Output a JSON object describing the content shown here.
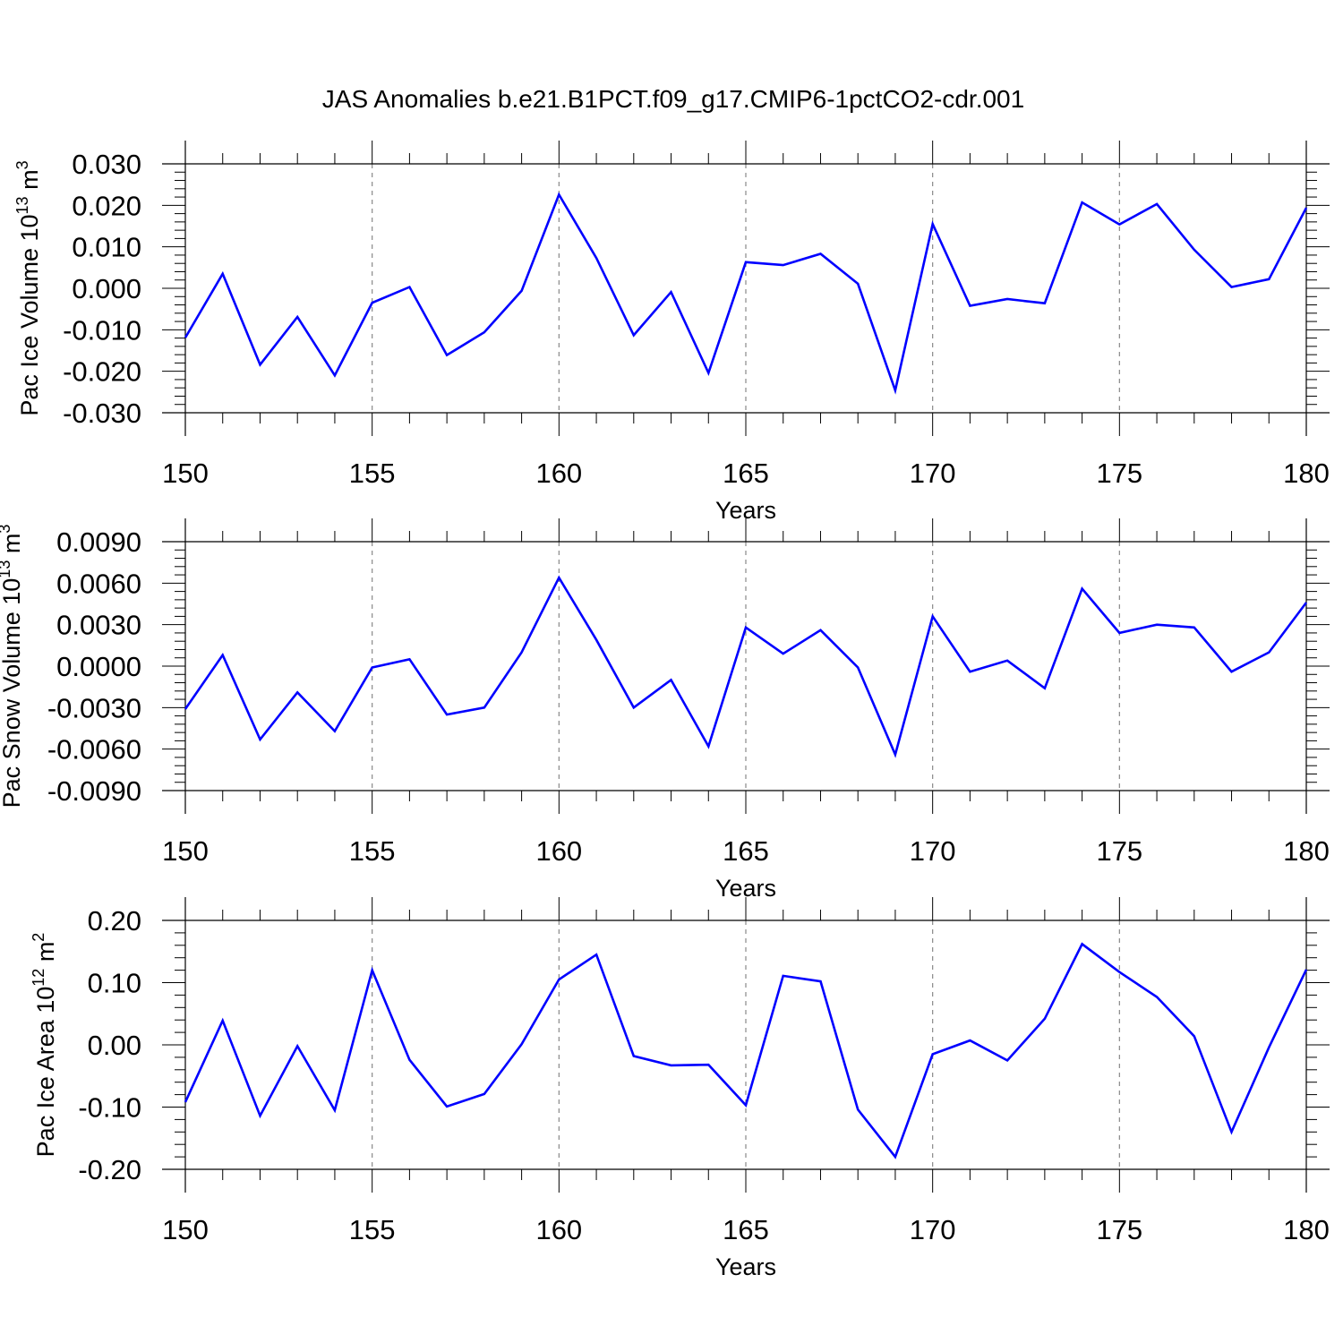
{
  "figure": {
    "title": "JAS Anomalies b.e21.B1PCT.f09_g17.CMIP6-1pctCO2-cdr.001"
  },
  "chart_data": [
    {
      "type": "line",
      "title": "",
      "xlabel": "Years",
      "ylabel": "Pac Ice Volume 10",
      "ylabel_exp": "13",
      "ylabel_unit": " m",
      "ylabel_unit_exp": "3",
      "xlim": [
        150,
        180
      ],
      "ylim": [
        -0.03,
        0.03
      ],
      "xticks": [
        150,
        155,
        160,
        165,
        170,
        175,
        180
      ],
      "xtick_labels": [
        "150",
        "155",
        "160",
        "165",
        "170",
        "175",
        "180"
      ],
      "yticks": [
        -0.03,
        -0.02,
        -0.01,
        0.0,
        0.01,
        0.02,
        0.03
      ],
      "ytick_labels": [
        "-0.030",
        "-0.020",
        "-0.010",
        "0.000",
        "0.010",
        "0.020",
        "0.030"
      ],
      "grid": "vertical dashed at major x ticks",
      "color": "#0000ff",
      "series": [
        {
          "x": [
            150,
            151,
            152,
            153,
            154,
            155,
            156,
            157,
            158,
            159,
            160,
            161,
            162,
            163,
            164,
            165,
            166,
            167,
            168,
            169,
            170,
            171,
            172,
            173,
            174,
            175,
            176,
            177,
            178,
            179,
            180
          ],
          "values": [
            -0.0119,
            0.0035,
            -0.0184,
            -0.0069,
            -0.021,
            -0.0035,
            0.0003,
            -0.0161,
            -0.0106,
            -0.0006,
            0.0226,
            0.0073,
            -0.0113,
            -0.0009,
            -0.0204,
            0.0063,
            0.0056,
            0.0083,
            0.0011,
            -0.0246,
            0.0155,
            -0.0042,
            -0.0026,
            -0.0036,
            0.0207,
            0.0154,
            0.0203,
            0.0093,
            0.0003,
            0.0022,
            0.0194
          ]
        }
      ]
    },
    {
      "type": "line",
      "title": "",
      "xlabel": "Years",
      "ylabel": "Pac Snow Volume 10",
      "ylabel_exp": "13",
      "ylabel_unit": " m",
      "ylabel_unit_exp": "3",
      "xlim": [
        150,
        180
      ],
      "ylim": [
        -0.009,
        0.009
      ],
      "xticks": [
        150,
        155,
        160,
        165,
        170,
        175,
        180
      ],
      "xtick_labels": [
        "150",
        "155",
        "160",
        "165",
        "170",
        "175",
        "180"
      ],
      "yticks": [
        -0.009,
        -0.006,
        -0.003,
        0.0,
        0.003,
        0.006,
        0.009
      ],
      "ytick_labels": [
        "-0.0090",
        "-0.0060",
        "-0.0030",
        "0.0000",
        "0.0030",
        "0.0060",
        "0.0090"
      ],
      "grid": "vertical dashed at major x ticks",
      "color": "#0000ff",
      "series": [
        {
          "x": [
            150,
            151,
            152,
            153,
            154,
            155,
            156,
            157,
            158,
            159,
            160,
            161,
            162,
            163,
            164,
            165,
            166,
            167,
            168,
            169,
            170,
            171,
            172,
            173,
            174,
            175,
            176,
            177,
            178,
            179,
            180
          ],
          "values": [
            -0.0031,
            0.0008,
            -0.0053,
            -0.0019,
            -0.0047,
            -0.0001,
            0.0005,
            -0.0035,
            -0.003,
            0.001,
            0.0064,
            0.0019,
            -0.003,
            -0.001,
            -0.0058,
            0.0028,
            0.0009,
            0.0026,
            -0.0001,
            -0.0064,
            0.0036,
            -0.0004,
            0.0004,
            -0.0016,
            0.0056,
            0.0024,
            0.003,
            0.0028,
            -0.0004,
            0.001,
            0.0046
          ]
        }
      ]
    },
    {
      "type": "line",
      "title": "",
      "xlabel": "Years",
      "ylabel": "Pac Ice Area 10",
      "ylabel_exp": "12",
      "ylabel_unit": " m",
      "ylabel_unit_exp": "2",
      "xlim": [
        150,
        180
      ],
      "ylim": [
        -0.2,
        0.2
      ],
      "xticks": [
        150,
        155,
        160,
        165,
        170,
        175,
        180
      ],
      "xtick_labels": [
        "150",
        "155",
        "160",
        "165",
        "170",
        "175",
        "180"
      ],
      "yticks": [
        -0.2,
        -0.1,
        0.0,
        0.1,
        0.2
      ],
      "ytick_labels": [
        "-0.20",
        "-0.10",
        "0.00",
        "0.10",
        "0.20"
      ],
      "grid": "vertical dashed at major x ticks",
      "color": "#0000ff",
      "series": [
        {
          "x": [
            150,
            151,
            152,
            153,
            154,
            155,
            156,
            157,
            158,
            159,
            160,
            161,
            162,
            163,
            164,
            165,
            166,
            167,
            168,
            169,
            170,
            171,
            172,
            173,
            174,
            175,
            176,
            177,
            178,
            179,
            180
          ],
          "values": [
            -0.092,
            0.039,
            -0.114,
            -0.002,
            -0.105,
            0.12,
            -0.024,
            -0.099,
            -0.079,
            0.001,
            0.105,
            0.145,
            -0.018,
            -0.033,
            -0.032,
            -0.097,
            0.111,
            0.102,
            -0.104,
            -0.18,
            -0.015,
            0.007,
            -0.025,
            0.042,
            0.162,
            0.117,
            0.077,
            0.014,
            -0.14,
            -0.004,
            0.121
          ]
        }
      ]
    }
  ]
}
